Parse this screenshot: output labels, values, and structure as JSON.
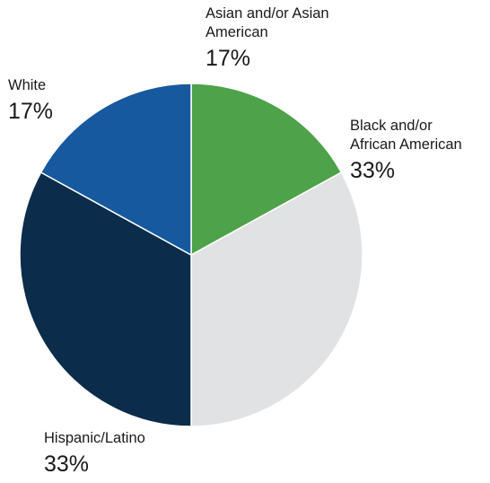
{
  "chart_data": {
    "type": "pie",
    "title": "",
    "slices": [
      {
        "label": "Asian and/or Asian\nAmerican",
        "value": 17,
        "display": "17%",
        "color": "#4ea24a"
      },
      {
        "label": "Black and/or\nAfrican American",
        "value": 33,
        "display": "33%",
        "color": "#e1e2e4"
      },
      {
        "label": "Hispanic/Latino",
        "value": 33,
        "display": "33%",
        "color": "#0b2c4b"
      },
      {
        "label": "White",
        "value": 17,
        "display": "17%",
        "color": "#16599f"
      }
    ]
  }
}
